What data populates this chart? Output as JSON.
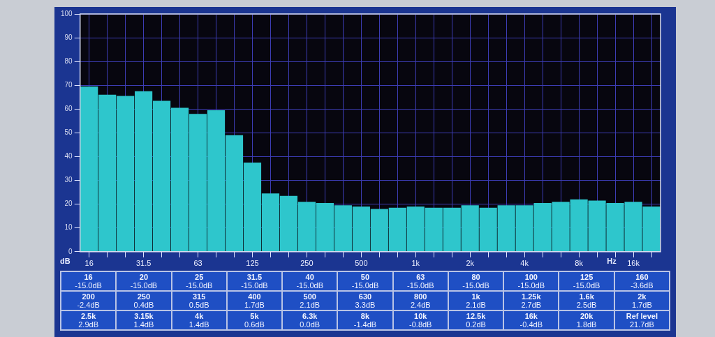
{
  "chart_data": {
    "type": "bar",
    "xlabel": "Hz",
    "ylabel": "dB",
    "categories": [
      "16",
      null,
      null,
      "31.5",
      null,
      null,
      "63",
      null,
      null,
      "125",
      null,
      null,
      "250",
      null,
      null,
      "500",
      null,
      null,
      "1k",
      null,
      null,
      "2k",
      null,
      null,
      "4k",
      null,
      null,
      "8k",
      null,
      null,
      "16k",
      null
    ],
    "values": [
      69.5,
      66,
      65.5,
      67.5,
      63.5,
      60.5,
      58,
      59.5,
      49,
      37.5,
      24.5,
      23.5,
      21,
      20.5,
      19.5,
      19,
      18,
      18.5,
      19,
      18.5,
      18.5,
      19.5,
      18.5,
      19.5,
      19.5,
      20.5,
      21,
      22,
      21.5,
      20.5,
      21,
      19
    ],
    "color": "#2ec6cc",
    "ylim": [
      0,
      100
    ],
    "yticks": [
      0,
      10,
      20,
      30,
      40,
      50,
      60,
      70,
      80,
      90,
      100
    ],
    "grid": true,
    "legend": false,
    "annotations": [
      "16",
      "-15.0dB",
      "20",
      "-15.0dB",
      "25",
      "-15.0dB",
      "31.5",
      "-15.0dB",
      "40",
      "-15.0dB",
      "50",
      "-15.0dB",
      "63",
      "-15.0dB",
      "80",
      "-15.0dB",
      "100",
      "-15.0dB",
      "125",
      "-15.0dB",
      "160",
      "-3.6dB",
      "200",
      "-2.4dB",
      "250",
      "0.4dB",
      "315",
      "0.5dB",
      "400",
      "1.7dB",
      "500",
      "2.1dB",
      "630",
      "3.3dB",
      "800",
      "2.4dB",
      "1k",
      "2.1dB",
      "1.25k",
      "2.7dB",
      "1.6k",
      "2.5dB",
      "2k",
      "1.7dB",
      "2.5k",
      "2.9dB",
      "3.15k",
      "1.4dB",
      "4k",
      "1.4dB",
      "5k",
      "0.6dB",
      "6.3k",
      "0.0dB",
      "8k",
      "-1.4dB",
      "10k",
      "-0.8dB",
      "12.5k",
      "0.2dB",
      "16k",
      "-0.4dB",
      "20k",
      "1.8dB",
      "Ref level",
      "21.7dB"
    ]
  }
}
